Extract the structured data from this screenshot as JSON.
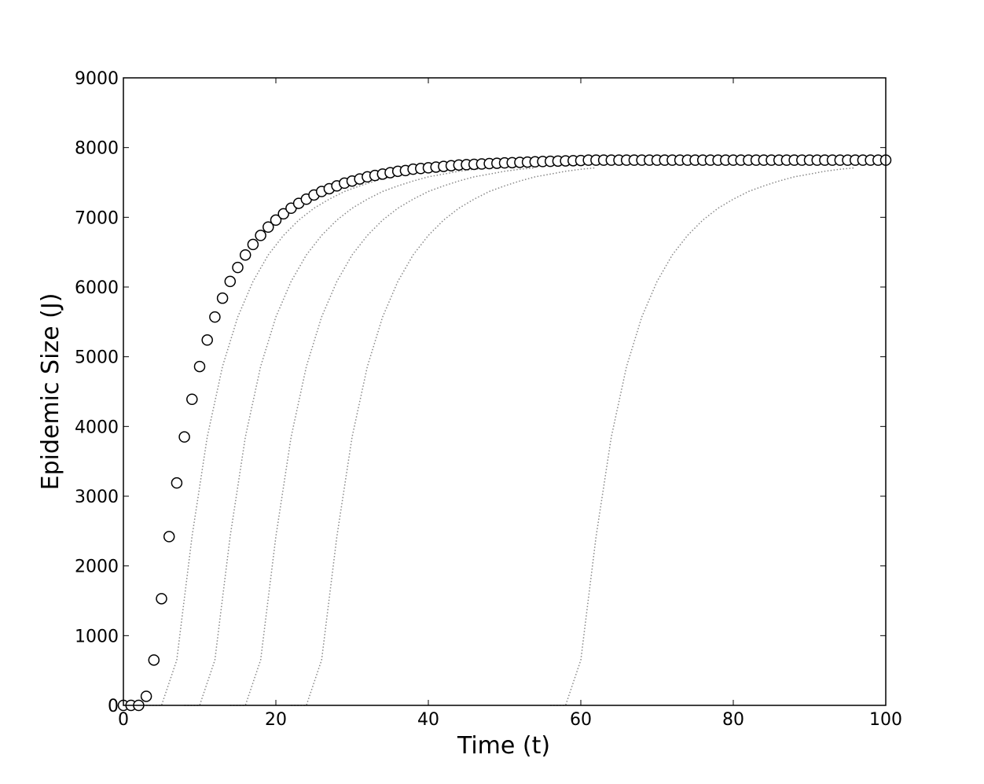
{
  "chart_data": {
    "type": "line",
    "xlabel": "Time (t)",
    "ylabel": "Epidemic Size (J)",
    "xlim": [
      0,
      100
    ],
    "ylim": [
      0,
      9000
    ],
    "xticks": [
      0,
      20,
      40,
      60,
      80,
      100
    ],
    "yticks": [
      0,
      1000,
      2000,
      3000,
      4000,
      5000,
      6000,
      7000,
      8000,
      9000
    ],
    "grid": false,
    "x": [
      0,
      1,
      2,
      3,
      4,
      5,
      6,
      7,
      8,
      9,
      10,
      11,
      12,
      13,
      14,
      15,
      16,
      17,
      18,
      19,
      20,
      21,
      22,
      23,
      24,
      25,
      26,
      27,
      28,
      29,
      30,
      31,
      32,
      33,
      34,
      35,
      36,
      37,
      38,
      39,
      40,
      41,
      42,
      43,
      44,
      45,
      46,
      47,
      48,
      49,
      50,
      51,
      52,
      53,
      54,
      55,
      56,
      57,
      58,
      59,
      60,
      61,
      62,
      63,
      64,
      65,
      66,
      67,
      68,
      69,
      70,
      71,
      72,
      73,
      74,
      75,
      76,
      77,
      78,
      79,
      80,
      81,
      82,
      83,
      84,
      85,
      86,
      87,
      88,
      89,
      90,
      91,
      92,
      93,
      94,
      95,
      96,
      97,
      98,
      99,
      100
    ],
    "series": [
      {
        "color": "#888888",
        "linestyle": "dotted",
        "x": [
          3,
          5,
          7,
          9,
          11,
          13,
          15,
          17,
          19,
          21,
          23,
          25,
          27,
          29,
          31,
          33,
          35,
          37,
          39,
          41,
          43
        ],
        "values": [
          0,
          0,
          650,
          2420,
          3850,
          4860,
          5570,
          6080,
          6460,
          6740,
          6960,
          7130,
          7260,
          7370,
          7450,
          7520,
          7580,
          7620,
          7660,
          7690,
          7710
        ]
      },
      {
        "color": "#888888",
        "linestyle": "dotted",
        "x": [
          8,
          10,
          12,
          14,
          16,
          18,
          20,
          22,
          24,
          26,
          28,
          30,
          32,
          34,
          36,
          38,
          40,
          42,
          44,
          46,
          48
        ],
        "values": [
          0,
          0,
          650,
          2420,
          3850,
          4860,
          5570,
          6080,
          6460,
          6740,
          6960,
          7130,
          7260,
          7370,
          7450,
          7520,
          7580,
          7620,
          7660,
          7690,
          7710
        ]
      },
      {
        "color": "#888888",
        "linestyle": "dotted",
        "x": [
          14,
          16,
          18,
          20,
          22,
          24,
          26,
          28,
          30,
          32,
          34,
          36,
          38,
          40,
          42,
          44,
          46,
          48,
          50,
          52,
          54
        ],
        "values": [
          0,
          0,
          650,
          2420,
          3850,
          4860,
          5570,
          6080,
          6460,
          6740,
          6960,
          7130,
          7260,
          7370,
          7450,
          7520,
          7580,
          7620,
          7660,
          7690,
          7710
        ]
      },
      {
        "color": "#888888",
        "linestyle": "dotted",
        "x": [
          22,
          24,
          26,
          28,
          30,
          32,
          34,
          36,
          38,
          40,
          42,
          44,
          46,
          48,
          50,
          52,
          54,
          56,
          58,
          60,
          62
        ],
        "values": [
          0,
          0,
          650,
          2420,
          3850,
          4860,
          5570,
          6080,
          6460,
          6740,
          6960,
          7130,
          7260,
          7370,
          7450,
          7520,
          7580,
          7620,
          7660,
          7690,
          7710
        ]
      },
      {
        "color": "#888888",
        "linestyle": "dotted",
        "x": [
          56,
          58,
          60,
          62,
          64,
          66,
          68,
          70,
          72,
          74,
          76,
          78,
          80,
          82,
          84,
          86,
          88,
          90,
          92,
          94,
          96
        ],
        "values": [
          0,
          0,
          650,
          2420,
          3850,
          4860,
          5570,
          6080,
          6460,
          6740,
          6960,
          7130,
          7260,
          7370,
          7450,
          7520,
          7580,
          7620,
          7660,
          7690,
          7710
        ]
      },
      {
        "color": "#ffffff",
        "marker": "o",
        "values": [
          0,
          0,
          0,
          130,
          650,
          1530,
          2420,
          3190,
          3850,
          4390,
          4860,
          5240,
          5570,
          5840,
          6080,
          6280,
          6460,
          6610,
          6740,
          6860,
          6960,
          7050,
          7130,
          7200,
          7260,
          7320,
          7370,
          7410,
          7450,
          7490,
          7520,
          7550,
          7580,
          7600,
          7620,
          7640,
          7660,
          7670,
          7690,
          7700,
          7710,
          7720,
          7730,
          7740,
          7750,
          7755,
          7760,
          7765,
          7770,
          7775,
          7780,
          7784,
          7788,
          7792,
          7796,
          7800,
          7803,
          7806,
          7809,
          7812,
          7815,
          7820,
          7820,
          7820,
          7820,
          7820,
          7820,
          7820,
          7820,
          7820,
          7820,
          7820,
          7820,
          7820,
          7820,
          7820,
          7820,
          7820,
          7820,
          7820,
          7820,
          7820,
          7820,
          7820,
          7820,
          7820,
          7820,
          7820,
          7820,
          7820,
          7820,
          7820,
          7820,
          7820,
          7820,
          7820,
          7820,
          7820,
          7820,
          7820,
          7820
        ]
      }
    ]
  }
}
